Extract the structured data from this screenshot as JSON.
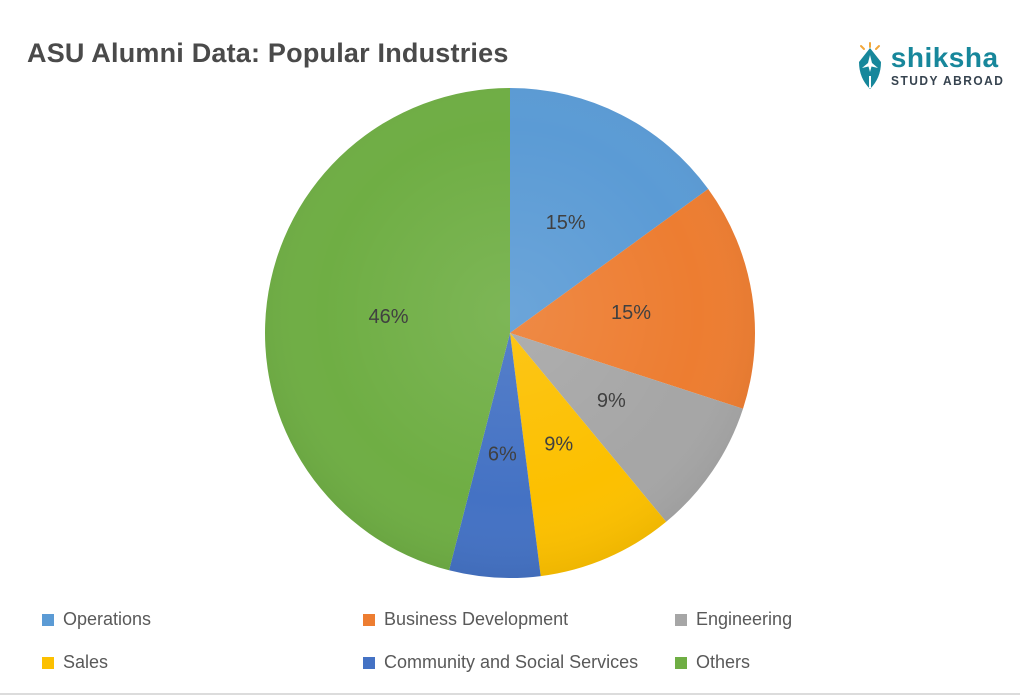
{
  "page": {
    "title": "ASU Alumni Data: Popular Industries"
  },
  "branding": {
    "name": "shiksha",
    "tagline": "STUDY ABROAD",
    "brand_color": "#17879B",
    "tagline_color": "#36434F",
    "accent_gold": "#F2A73B"
  },
  "chart_data": {
    "type": "pie",
    "title": "ASU Alumni Data: Popular Industries",
    "start_angle_deg": 0,
    "direction": "clockwise",
    "legend_position": "bottom",
    "legend_columns": 3,
    "data_label_color": "#404040",
    "series": [
      {
        "label": "Operations",
        "value": 15,
        "display": "15%",
        "color": "#5B9BD5"
      },
      {
        "label": "Business Development",
        "value": 15,
        "display": "15%",
        "color": "#ED7D31"
      },
      {
        "label": "Engineering",
        "value": 9,
        "display": "9%",
        "color": "#A6A6A6"
      },
      {
        "label": "Sales",
        "value": 9,
        "display": "9%",
        "color": "#FCC000"
      },
      {
        "label": "Community and Social Services",
        "value": 6,
        "display": "6%",
        "color": "#4472C4"
      },
      {
        "label": "Others",
        "value": 46,
        "display": "46%",
        "color": "#6FAE44"
      }
    ]
  }
}
